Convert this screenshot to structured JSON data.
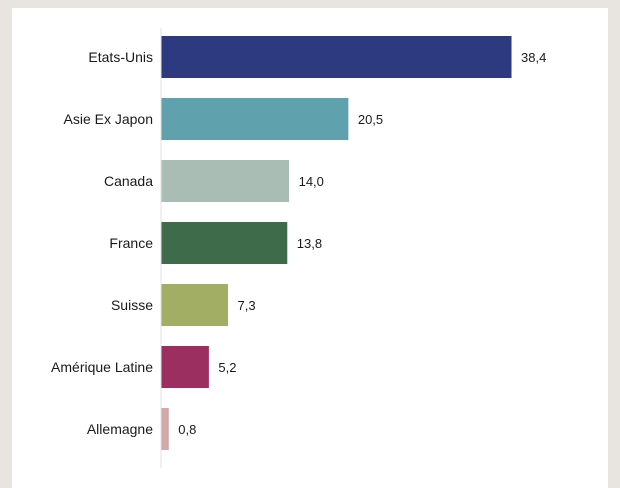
{
  "chart_data": {
    "type": "bar",
    "orientation": "horizontal",
    "categories": [
      "Etats-Unis",
      "Asie Ex Japon",
      "Canada",
      "France",
      "Suisse",
      "Amérique Latine",
      "Allemagne"
    ],
    "values": [
      38.4,
      20.5,
      14.0,
      13.8,
      7.3,
      5.2,
      0.8
    ],
    "value_labels": [
      "38,4",
      "20,5",
      "14,0",
      "13,8",
      "7,3",
      "5,2",
      "0,8"
    ],
    "colors": [
      "#2e3a80",
      "#5fa1ad",
      "#a9bdb5",
      "#3e6b4a",
      "#a2ae63",
      "#9b2f60",
      "#d1a9a8"
    ],
    "title": "",
    "xlabel": "",
    "ylabel": "",
    "xlim": [
      0,
      40
    ],
    "grid": false,
    "legend": "none"
  }
}
